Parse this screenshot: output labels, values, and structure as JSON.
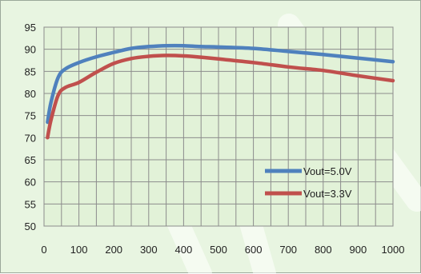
{
  "chart_data": {
    "type": "line",
    "title": "",
    "xlabel": "",
    "ylabel": "",
    "xlim": [
      0,
      1000
    ],
    "ylim": [
      50,
      95
    ],
    "x_ticks": [
      0,
      100,
      200,
      300,
      400,
      500,
      600,
      700,
      800,
      900,
      1000
    ],
    "y_ticks": [
      50,
      55,
      60,
      65,
      70,
      75,
      80,
      85,
      90,
      95
    ],
    "x_tick_labels": [
      "0",
      "100",
      "200",
      "300",
      "400",
      "500",
      "600",
      "700",
      "800",
      "900",
      "1000"
    ],
    "y_tick_labels": [
      "50",
      "55",
      "60",
      "65",
      "70",
      "75",
      "80",
      "85",
      "90",
      "95"
    ],
    "grid": true,
    "legend_position": "bottom-right",
    "series": [
      {
        "name": "Vout=5.0V",
        "color": "#4f81bd",
        "x": [
          10,
          20,
          40,
          60,
          100,
          150,
          200,
          250,
          300,
          350,
          400,
          450,
          500,
          600,
          700,
          800,
          900,
          1000
        ],
        "y": [
          73.5,
          78,
          83.5,
          85.5,
          87,
          88.3,
          89.3,
          90.2,
          90.6,
          90.8,
          90.8,
          90.6,
          90.5,
          90.2,
          89.5,
          88.8,
          88,
          87.2
        ]
      },
      {
        "name": "Vout=3.3V",
        "color": "#c0504d",
        "x": [
          10,
          20,
          40,
          60,
          100,
          150,
          200,
          250,
          300,
          350,
          400,
          450,
          500,
          600,
          700,
          800,
          900,
          1000
        ],
        "y": [
          70,
          74,
          79.5,
          81.3,
          82.5,
          84.8,
          86.8,
          87.9,
          88.4,
          88.6,
          88.5,
          88.2,
          87.8,
          87,
          86,
          85.2,
          84,
          82.9
        ]
      }
    ]
  }
}
